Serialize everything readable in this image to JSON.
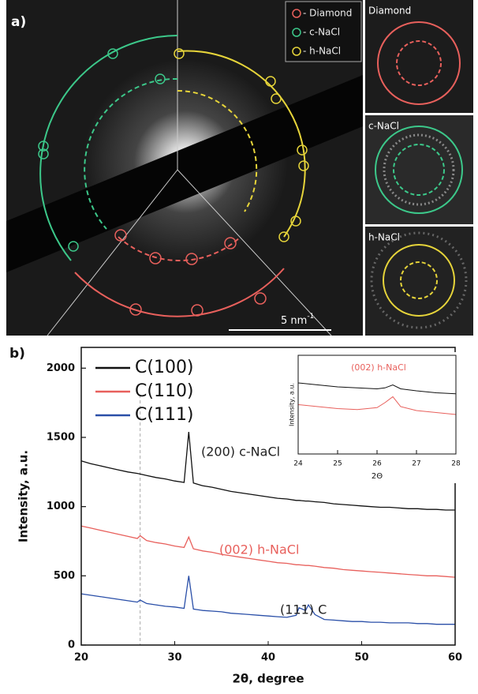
{
  "panel_a": {
    "label": "a)",
    "legend": [
      "- Diamond",
      "- c-NaCl",
      "- h-NaCl"
    ],
    "insets": [
      "Diamond",
      "c-NaCl",
      "h-NaCl"
    ],
    "scale_bar": {
      "text": "5 nm",
      "exponent": "-1"
    }
  },
  "panel_b_label": "b)",
  "chart_data": [
    {
      "type": "line",
      "xlabel": "2θ, degree",
      "ylabel": "Intensity, a.u.",
      "x": [
        20,
        21,
        22,
        23,
        24,
        25,
        26,
        26.3,
        27,
        28,
        29,
        30,
        31,
        31.5,
        32,
        33,
        34,
        35,
        36,
        37,
        38,
        39,
        40,
        41,
        42,
        43,
        43.3,
        44,
        44.3,
        45,
        46,
        47,
        48,
        49,
        50,
        51,
        52,
        53,
        54,
        55,
        56,
        57,
        58,
        59,
        60
      ],
      "series": [
        {
          "name": "C(100)",
          "color": "#111111",
          "values": [
            1330,
            1310,
            1295,
            1280,
            1265,
            1250,
            1240,
            1235,
            1225,
            1210,
            1200,
            1185,
            1175,
            1540,
            1170,
            1150,
            1140,
            1125,
            1110,
            1100,
            1090,
            1080,
            1070,
            1060,
            1055,
            1045,
            1045,
            1040,
            1040,
            1035,
            1030,
            1020,
            1015,
            1010,
            1005,
            1000,
            995,
            995,
            990,
            985,
            985,
            980,
            980,
            975,
            975
          ]
        },
        {
          "name": "C(110)",
          "color": "#e8605c",
          "values": [
            860,
            845,
            830,
            815,
            800,
            785,
            770,
            790,
            755,
            740,
            730,
            715,
            705,
            780,
            695,
            680,
            670,
            655,
            645,
            635,
            625,
            615,
            605,
            595,
            590,
            580,
            580,
            575,
            575,
            570,
            560,
            555,
            545,
            540,
            535,
            530,
            525,
            520,
            515,
            510,
            505,
            500,
            500,
            495,
            490
          ]
        },
        {
          "name": "C(111)",
          "color": "#2a4fa8",
          "values": [
            370,
            360,
            350,
            340,
            330,
            320,
            310,
            325,
            300,
            290,
            280,
            275,
            265,
            500,
            260,
            250,
            245,
            240,
            230,
            225,
            220,
            215,
            210,
            205,
            200,
            215,
            270,
            250,
            290,
            220,
            185,
            180,
            175,
            170,
            170,
            165,
            165,
            160,
            160,
            160,
            155,
            155,
            150,
            150,
            150
          ]
        }
      ],
      "xlim": [
        20,
        60
      ],
      "xticks": [
        20,
        30,
        40,
        50,
        60
      ],
      "ylim": [
        0,
        2150
      ],
      "yticks": [
        0,
        500,
        1000,
        1500,
        2000
      ],
      "legend": "upper left",
      "ref_line_x": 26.3,
      "annotations": [
        {
          "text": "(200) c-NaCl",
          "color": "#222222"
        },
        {
          "text": "(002) h-NaCl",
          "color": "#e8605c"
        },
        {
          "text": "(111) C",
          "color": "#222222"
        }
      ]
    },
    {
      "type": "line",
      "xlabel": "2Θ",
      "ylabel": "Intensity, a.u.",
      "x": [
        24,
        24.5,
        25,
        25.5,
        26,
        26.2,
        26.4,
        26.6,
        27,
        27.5,
        28
      ],
      "series": [
        {
          "color": "#111111",
          "values": [
            72,
            70,
            68,
            67,
            66,
            67,
            70,
            66,
            64,
            62,
            61
          ]
        },
        {
          "color": "#e8605c",
          "values": [
            50,
            48,
            46,
            45,
            47,
            52,
            58,
            48,
            44,
            42,
            40
          ]
        }
      ],
      "xlim": [
        24,
        28
      ],
      "xticks": [
        24,
        25,
        26,
        27,
        28
      ],
      "ylim": [
        0,
        100
      ],
      "annotations": [
        {
          "text": "(002) h-NaCl",
          "color": "#e8605c"
        }
      ]
    }
  ]
}
